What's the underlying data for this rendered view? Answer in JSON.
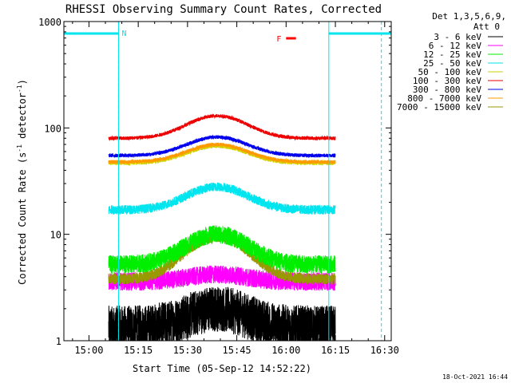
{
  "chart_data": {
    "type": "line",
    "title": "RHESSI Observing Summary Count Rates, Corrected",
    "xlabel": "Start Time (05-Sep-12 14:52:22)",
    "ylabel_main": "Corrected Count Rate (s",
    "ylabel_sup1": "-1",
    "ylabel_mid": " detector",
    "ylabel_sup2": "-1",
    "ylabel_end": ")",
    "y_scale": "log",
    "ylim": [
      1,
      1000
    ],
    "xlim": [
      "14:52:22",
      "16:32"
    ],
    "x_ticks": [
      "15:00",
      "15:15",
      "15:30",
      "15:45",
      "16:00",
      "16:15",
      "16:30"
    ],
    "y_ticks": [
      "1",
      "10",
      "100",
      "1000"
    ],
    "legend_header": [
      "Det 1,3,5,6,9,",
      "Att 0"
    ],
    "legend_position": "right",
    "timestamp": "18-Oct-2021 16:44",
    "flags": [
      {
        "label": "N",
        "color": "#00e5ee"
      },
      {
        "label": "F",
        "color": "#ff0000"
      }
    ],
    "night_intervals": [
      [
        "14:52:22",
        "15:09"
      ],
      [
        "16:13",
        "16:32"
      ]
    ],
    "flare_flag_interval": [
      "16:00",
      "16:03"
    ],
    "shaded_boundaries": [
      "15:09",
      "16:29"
    ],
    "data_interval": [
      "15:06",
      "16:15"
    ],
    "series": [
      {
        "name": "3 - 6 keV",
        "color": "#000000",
        "peak_time": "15:39",
        "base": 1.3,
        "peak": 2.0,
        "noise": 0.5,
        "rate": 36
      },
      {
        "name": "6 - 12 keV",
        "color": "#ff00ff",
        "peak_time": "15:39",
        "base": 3.6,
        "peak": 4.2,
        "noise": 0.2,
        "rate": 36
      },
      {
        "name": "12 - 25 keV",
        "color": "#00ee00",
        "peak_time": "15:39",
        "base": 5.2,
        "peak": 10.0,
        "noise": 0.2,
        "rate": 36
      },
      {
        "name": "25 - 50 keV",
        "color": "#00e5ee",
        "peak_time": "15:39",
        "base": 17.0,
        "peak": 28.0,
        "noise": 0.1,
        "rate": 36
      },
      {
        "name": "50 - 100 keV",
        "color": "#d2d200",
        "peak_time": "15:39",
        "base": 47.0,
        "peak": 68.0,
        "noise": 0.05,
        "rate": 36
      },
      {
        "name": "100 - 300 keV",
        "color": "#ee0000",
        "peak_time": "15:39",
        "base": 80.0,
        "peak": 130.0,
        "noise": 0.04,
        "rate": 36
      },
      {
        "name": "300 - 800 keV",
        "color": "#0000ee",
        "peak_time": "15:39",
        "base": 55.0,
        "peak": 82.0,
        "noise": 0.04,
        "rate": 36
      },
      {
        "name": "800 - 7000 keV",
        "color": "#ff9900",
        "peak_time": "15:39",
        "base": 48.0,
        "peak": 70.0,
        "noise": 0.04,
        "rate": 36
      },
      {
        "name": "7000 - 15000 keV",
        "color": "#999900",
        "peak_time": "15:39",
        "base": 3.8,
        "peak": 9.5,
        "noise": 0.12,
        "rate": 36
      }
    ]
  }
}
